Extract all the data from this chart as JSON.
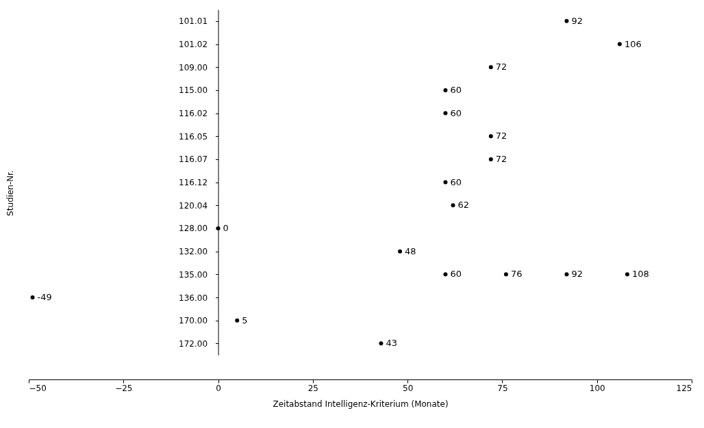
{
  "chart_data": {
    "type": "scatter",
    "orientation": "horizontal",
    "xlabel": "Zeitabstand Intelligenz-Kriterium (Monate)",
    "ylabel": "Studien-Nr.",
    "categories": [
      "101.01",
      "101.02",
      "109.00",
      "115.00",
      "116.02",
      "116.05",
      "116.07",
      "116.12",
      "120.04",
      "128.00",
      "132.00",
      "135.00",
      "136.00",
      "170.00",
      "172.00"
    ],
    "series": [
      {
        "color": "#000000",
        "values": [
          92,
          106,
          72,
          60,
          60,
          72,
          72,
          60,
          62,
          0,
          48,
          60,
          -49,
          5,
          43
        ]
      },
      {
        "color": "#000000",
        "values": [
          null,
          null,
          null,
          null,
          null,
          null,
          null,
          null,
          null,
          null,
          null,
          76,
          null,
          null,
          null
        ]
      },
      {
        "color": "#000000",
        "values": [
          null,
          null,
          null,
          null,
          null,
          null,
          null,
          null,
          null,
          null,
          null,
          92,
          null,
          null,
          null
        ]
      },
      {
        "color": "#000000",
        "values": [
          null,
          null,
          null,
          null,
          null,
          null,
          null,
          null,
          null,
          null,
          null,
          108,
          null,
          null,
          null
        ]
      }
    ],
    "xlim": [
      -50,
      125
    ],
    "xticks": [
      -50,
      -25,
      0,
      25,
      50,
      75,
      100,
      125
    ],
    "data_labels": true,
    "marker": "circle",
    "grid": false
  }
}
